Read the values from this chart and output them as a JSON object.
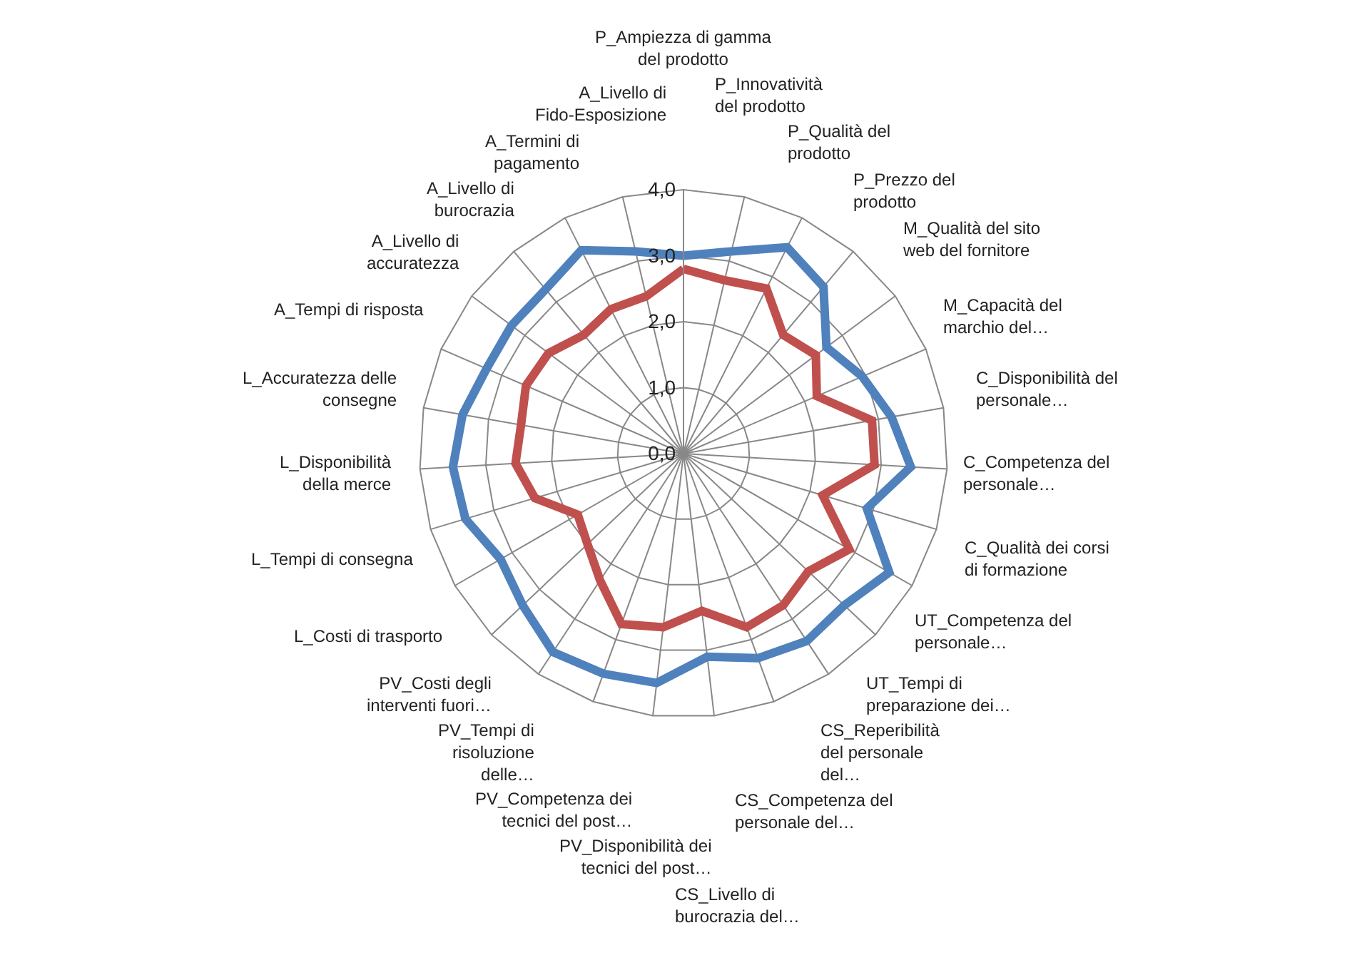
{
  "chart_data": {
    "type": "radar",
    "categories": [
      "P_Ampiezza di gamma del prodotto",
      "P_Innovatività del prodotto",
      "P_Qualità del prodotto",
      "P_Prezzo del prodotto",
      "M_Qualità del sito web del fornitore",
      "M_Capacità del marchio del…",
      "C_Disponibilità del personale…",
      "C_Competenza del personale…",
      "C_Qualità dei corsi di formazione",
      "UT_Competenza del personale…",
      "UT_Tempi di preparazione dei…",
      "CS_Reperibilità del personale del…",
      "CS_Competenza del personale del…",
      "CS_Livello di burocrazia del…",
      "PV_Disponibilità dei tecnici del post…",
      "PV_Competenza dei tecnici del post…",
      "PV_Tempi di risoluzione delle…",
      "PV_Costi degli interventi fuori…",
      "L_Costi di trasporto",
      "L_Tempi di consegna",
      "L_Disponibilità della merce",
      "L_Accuratezza delle consegne",
      "A_Tempi di risposta",
      "A_Livello di accuratezza",
      "A_Livello di burocrazia",
      "A_Termini di pagamento",
      "A_Livello di Fido-Esposizione"
    ],
    "series": [
      {
        "color": "#4f81bd",
        "values": [
          3.0,
          3.15,
          3.5,
          3.3,
          2.7,
          2.95,
          3.2,
          3.45,
          2.9,
          3.6,
          3.35,
          3.4,
          3.3,
          3.1,
          3.5,
          3.55,
          3.6,
          3.35,
          3.2,
          3.45,
          3.5,
          3.4,
          3.25,
          3.25,
          3.25,
          3.45,
          3.15
        ]
      },
      {
        "color": "#c0504d",
        "values": [
          2.8,
          2.7,
          2.8,
          2.35,
          2.5,
          2.2,
          2.9,
          2.9,
          2.2,
          2.9,
          2.6,
          2.75,
          2.8,
          2.4,
          2.65,
          2.75,
          2.3,
          2.0,
          1.85,
          2.35,
          2.55,
          2.5,
          2.6,
          2.55,
          2.35,
          2.45,
          2.45
        ]
      }
    ],
    "ylim": [
      0,
      4
    ],
    "yticks": [
      {
        "value": 0,
        "label": "0,0"
      },
      {
        "value": 1,
        "label": "1,0"
      },
      {
        "value": 2,
        "label": "2,0"
      },
      {
        "value": 3,
        "label": "3,0"
      },
      {
        "value": 4,
        "label": "4,0"
      }
    ],
    "grid": true,
    "legend": false,
    "marker": "none",
    "line_style": "solid"
  }
}
